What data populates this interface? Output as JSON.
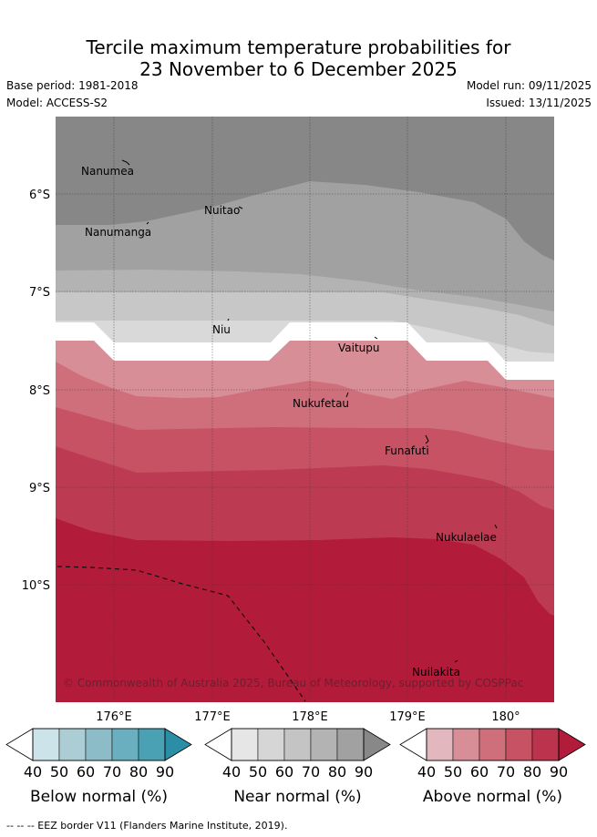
{
  "header": {
    "title_line1": "Tercile maximum temperature probabilities for",
    "title_line2": "23 November to 6 December 2025",
    "base_period": "Base period: 1981-2018",
    "model": "Model: ACCESS-S2",
    "model_run": "Model run: 09/11/2025",
    "issued": "Issued: 13/11/2025"
  },
  "map": {
    "lat_labels": [
      "6°S",
      "7°S",
      "8°S",
      "9°S",
      "10°S"
    ],
    "lon_labels": [
      "176°E",
      "177°E",
      "178°E",
      "179°E",
      "180°"
    ],
    "places": [
      "Nanumea",
      "Nuitao",
      "Nanumanga",
      "Niu",
      "Vaitupu",
      "Nukufetau",
      "Funafuti",
      "Nukulaelae",
      "Nuilakita"
    ],
    "copyright": "© Commonwealth of Australia 2025, Bureau of Meteorology, supported by COSPPac"
  },
  "colorbars": [
    {
      "label": "Below normal (%)",
      "ticks": [
        "40",
        "50",
        "60",
        "70",
        "80",
        "90"
      ],
      "colors": [
        "#cde3ea",
        "#abcdd3",
        "#8bbcc8",
        "#6aafbf",
        "#49a1b3",
        "#2c8ea6"
      ]
    },
    {
      "label": "Near normal (%)",
      "ticks": [
        "40",
        "50",
        "60",
        "70",
        "80",
        "90"
      ],
      "colors": [
        "#e6e6e6",
        "#d6d6d6",
        "#c4c4c4",
        "#b3b3b3",
        "#a1a1a1",
        "#888888"
      ]
    },
    {
      "label": "Above normal (%)",
      "ticks": [
        "40",
        "50",
        "60",
        "70",
        "80",
        "90"
      ],
      "colors": [
        "#e2b7bd",
        "#d88e97",
        "#cf6f7b",
        "#c65263",
        "#bb334d",
        "#b21c3a"
      ]
    }
  ],
  "footer": "-- -- -- EEZ border V11 (Flanders Marine Institute, 2019)."
}
